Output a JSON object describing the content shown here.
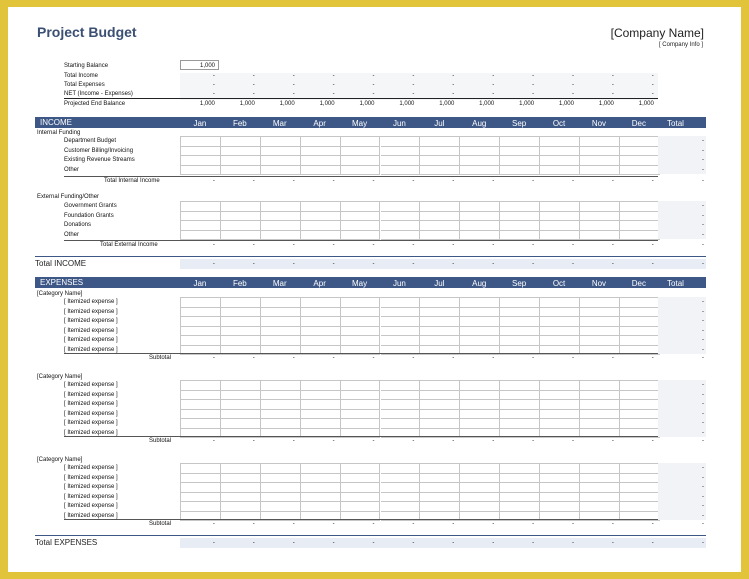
{
  "title": "Project Budget",
  "company_name": "[Company Name]",
  "company_info": "[ Company Info ]",
  "months": [
    "Jan",
    "Feb",
    "Mar",
    "Apr",
    "May",
    "Jun",
    "Jul",
    "Aug",
    "Sep",
    "Oct",
    "Nov",
    "Dec"
  ],
  "total_label": "Total",
  "summary": {
    "starting_balance_label": "Starting Balance",
    "starting_balance_value": "1,000",
    "rows": [
      {
        "label": "Total Income",
        "values": [
          "-",
          "-",
          "-",
          "-",
          "-",
          "-",
          "-",
          "-",
          "-",
          "-",
          "-",
          "-"
        ]
      },
      {
        "label": "Total Expenses",
        "values": [
          "-",
          "-",
          "-",
          "-",
          "-",
          "-",
          "-",
          "-",
          "-",
          "-",
          "-",
          "-"
        ]
      },
      {
        "label": "NET (Income - Expenses)",
        "values": [
          "-",
          "-",
          "-",
          "-",
          "-",
          "-",
          "-",
          "-",
          "-",
          "-",
          "-",
          "-"
        ]
      },
      {
        "label": "Projected End Balance",
        "values": [
          "1,000",
          "1,000",
          "1,000",
          "1,000",
          "1,000",
          "1,000",
          "1,000",
          "1,000",
          "1,000",
          "1,000",
          "1,000",
          "1,000"
        ]
      }
    ]
  },
  "income": {
    "header": "INCOME",
    "groups": [
      {
        "name": "Internal Funding",
        "items": [
          "Department Budget",
          "Customer Billing/Invoicing",
          "Existing Revenue Streams",
          "Other"
        ],
        "subtotal_label": "Total Internal Income"
      },
      {
        "name": "External Funding/Other",
        "items": [
          "Government Grants",
          "Foundation Grants",
          "Donations",
          "Other"
        ],
        "subtotal_label": "Total External Income"
      }
    ],
    "total_label": "Total INCOME"
  },
  "expenses": {
    "header": "EXPENSES",
    "groups": [
      {
        "name": "[Category Name]",
        "items": [
          "[ Itemized expense ]",
          "[ Itemized expense ]",
          "[ Itemized expense ]",
          "[ Itemized expense ]",
          "[ Itemized expense ]",
          "[ Itemized expense ]"
        ],
        "subtotal_label": "Subtotal"
      },
      {
        "name": "[Category Name]",
        "items": [
          "[ Itemized expense ]",
          "[ Itemized expense ]",
          "[ Itemized expense ]",
          "[ Itemized expense ]",
          "[ Itemized expense ]",
          "[ Itemized expense ]"
        ],
        "subtotal_label": "Subtotal"
      },
      {
        "name": "[Category Name]",
        "items": [
          "[ Itemized expense ]",
          "[ Itemized expense ]",
          "[ Itemized expense ]",
          "[ Itemized expense ]",
          "[ Itemized expense ]",
          "[ Itemized expense ]"
        ],
        "subtotal_label": "Subtotal"
      }
    ],
    "total_label": "Total EXPENSES"
  },
  "dash": "-"
}
